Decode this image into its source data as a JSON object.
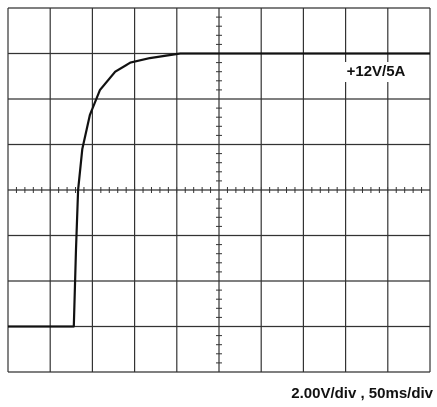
{
  "chart_data": {
    "type": "line",
    "annotation": "+12V/5A",
    "caption": "2.00V/div , 50ms/div",
    "x": [
      0,
      76,
      78,
      80.6,
      83,
      88,
      97,
      109,
      127,
      145,
      168,
      204,
      300,
      400,
      500
    ],
    "series": [
      {
        "name": "+12V/5A",
        "color": "#111111",
        "values": [
          0,
          0,
          0,
          3.4,
          6.0,
          7.8,
          9.3,
          10.4,
          11.2,
          11.6,
          11.8,
          12,
          12,
          12,
          12
        ]
      }
    ],
    "xlim": [
      0,
      500
    ],
    "ylim": [
      -2,
      14
    ],
    "xticks": [
      0,
      50,
      100,
      150,
      200,
      250,
      300,
      350,
      400,
      450,
      500
    ],
    "yticks": [
      -2,
      0,
      2,
      4,
      6,
      8,
      10,
      12,
      14
    ],
    "grid": true
  }
}
